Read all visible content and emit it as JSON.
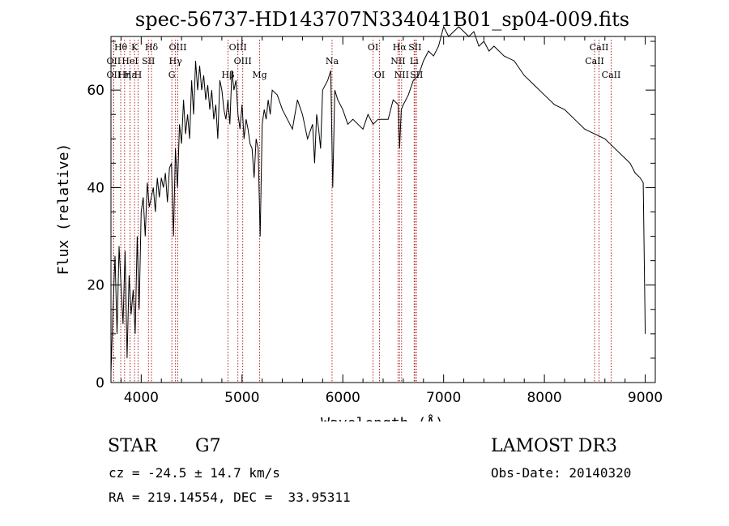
{
  "chart_data": {
    "type": "line",
    "title": "spec-56737-HD143707N334041B01_sp04-009.fits",
    "xlabel": "Wavelength (Å)",
    "ylabel": "Flux (relative)",
    "xlim": [
      3700,
      9100
    ],
    "ylim": [
      0,
      71
    ],
    "x_ticks": [
      4000,
      5000,
      6000,
      7000,
      8000,
      9000
    ],
    "y_ticks": [
      0,
      20,
      40,
      60
    ],
    "grid": false,
    "line_color": "#000000",
    "marker_color": "#b22222",
    "series": [
      {
        "x": [
          3700,
          3720,
          3740,
          3760,
          3780,
          3800,
          3820,
          3840,
          3860,
          3880,
          3900,
          3920,
          3940,
          3960,
          3980,
          4000,
          4020,
          4040,
          4060,
          4080,
          4100,
          4120,
          4140,
          4160,
          4180,
          4200,
          4220,
          4240,
          4260,
          4280,
          4300,
          4320,
          4340,
          4360,
          4380,
          4400,
          4420,
          4440,
          4460,
          4480,
          4500,
          4520,
          4540,
          4560,
          4580,
          4600,
          4620,
          4640,
          4660,
          4680,
          4700,
          4720,
          4740,
          4760,
          4780,
          4800,
          4820,
          4840,
          4860,
          4880,
          4900,
          4920,
          4940,
          4960,
          4980,
          5000,
          5020,
          5040,
          5060,
          5080,
          5100,
          5120,
          5140,
          5160,
          5180,
          5200,
          5220,
          5240,
          5260,
          5280,
          5300,
          5350,
          5400,
          5450,
          5500,
          5550,
          5600,
          5650,
          5700,
          5720,
          5740,
          5760,
          5780,
          5800,
          5850,
          5880,
          5900,
          5920,
          5950,
          6000,
          6050,
          6100,
          6150,
          6200,
          6250,
          6300,
          6350,
          6400,
          6450,
          6500,
          6550,
          6563,
          6580,
          6600,
          6650,
          6700,
          6750,
          6800,
          6850,
          6900,
          6950,
          7000,
          7050,
          7100,
          7150,
          7200,
          7250,
          7300,
          7350,
          7400,
          7450,
          7500,
          7600,
          7700,
          7800,
          7900,
          8000,
          8100,
          8200,
          8300,
          8400,
          8500,
          8600,
          8700,
          8800,
          8850,
          8900,
          8950,
          8980,
          9000
        ],
        "y": [
          2,
          15,
          26,
          10,
          28,
          20,
          12,
          27,
          5,
          22,
          14,
          19,
          10,
          30,
          15,
          35,
          38,
          30,
          41,
          36,
          38,
          40,
          35,
          42,
          38,
          42,
          40,
          43,
          37,
          44,
          45,
          30,
          48,
          40,
          53,
          49,
          58,
          51,
          55,
          50,
          62,
          55,
          66,
          60,
          65,
          60,
          63,
          58,
          61,
          56,
          60,
          54,
          57,
          50,
          62,
          60,
          56,
          54,
          58,
          53,
          64,
          60,
          62,
          55,
          52,
          57,
          50,
          54,
          52,
          49,
          48,
          42,
          50,
          48,
          30,
          53,
          56,
          54,
          58,
          55,
          60,
          59,
          56,
          54,
          52,
          58,
          55,
          50,
          53,
          45,
          55,
          52,
          48,
          60,
          62,
          64,
          40,
          60,
          58,
          56,
          53,
          54,
          53,
          52,
          55,
          53,
          54,
          54,
          54,
          58,
          57,
          48,
          56,
          57,
          59,
          62,
          63,
          66,
          68,
          67,
          69,
          73,
          71,
          72,
          73,
          72,
          71,
          72,
          69,
          70,
          68,
          69,
          67,
          66,
          63,
          61,
          59,
          57,
          56,
          54,
          52,
          51,
          50,
          48,
          46,
          45,
          43,
          42,
          41,
          10
        ]
      }
    ],
    "lines": [
      {
        "name": "Hθ",
        "x": 3797,
        "row": 1
      },
      {
        "name": "OII",
        "x": 3727,
        "row": 2
      },
      {
        "name": "OII",
        "x": 3727,
        "row": 3
      },
      {
        "name": "K",
        "x": 3934,
        "row": 1
      },
      {
        "name": "HeI",
        "x": 3889,
        "row": 2
      },
      {
        "name": "Hε",
        "x": 3889,
        "row": 3
      },
      {
        "name": "Hη",
        "x": 3835,
        "row": 3
      },
      {
        "name": "H",
        "x": 3969,
        "row": 3
      },
      {
        "name": "Hδ",
        "x": 4102,
        "row": 1
      },
      {
        "name": "SII",
        "x": 4072,
        "row": 2
      },
      {
        "name": "OIII",
        "x": 4363,
        "row": 1
      },
      {
        "name": "Hγ",
        "x": 4340,
        "row": 2
      },
      {
        "name": "G",
        "x": 4304,
        "row": 3
      },
      {
        "name": "OIII",
        "x": 4959,
        "row": 1
      },
      {
        "name": "OIII",
        "x": 5007,
        "row": 2
      },
      {
        "name": "Hβ",
        "x": 4861,
        "row": 3
      },
      {
        "name": "Mg",
        "x": 5175,
        "row": 3
      },
      {
        "name": "Na",
        "x": 5893,
        "row": 2
      },
      {
        "name": "OI",
        "x": 6300,
        "row": 1
      },
      {
        "name": "OI",
        "x": 6364,
        "row": 3
      },
      {
        "name": "Hα",
        "x": 6563,
        "row": 1
      },
      {
        "name": "NII",
        "x": 6548,
        "row": 2
      },
      {
        "name": "NII",
        "x": 6583,
        "row": 3
      },
      {
        "name": "SII",
        "x": 6716,
        "row": 1
      },
      {
        "name": "Li",
        "x": 6708,
        "row": 2
      },
      {
        "name": "SII",
        "x": 6731,
        "row": 3
      },
      {
        "name": "CaII",
        "x": 8542,
        "row": 1
      },
      {
        "name": "CaII",
        "x": 8498,
        "row": 2
      },
      {
        "name": "CaII",
        "x": 8662,
        "row": 3
      }
    ]
  },
  "info": {
    "object_class": "STAR",
    "subclass": "G7",
    "survey": "LAMOST DR3",
    "cz": "cz = -24.5 ± 14.7 km/s",
    "obs_date": "Obs-Date: 20140320",
    "coords": "RA = 219.14554, DEC =  33.95311"
  }
}
